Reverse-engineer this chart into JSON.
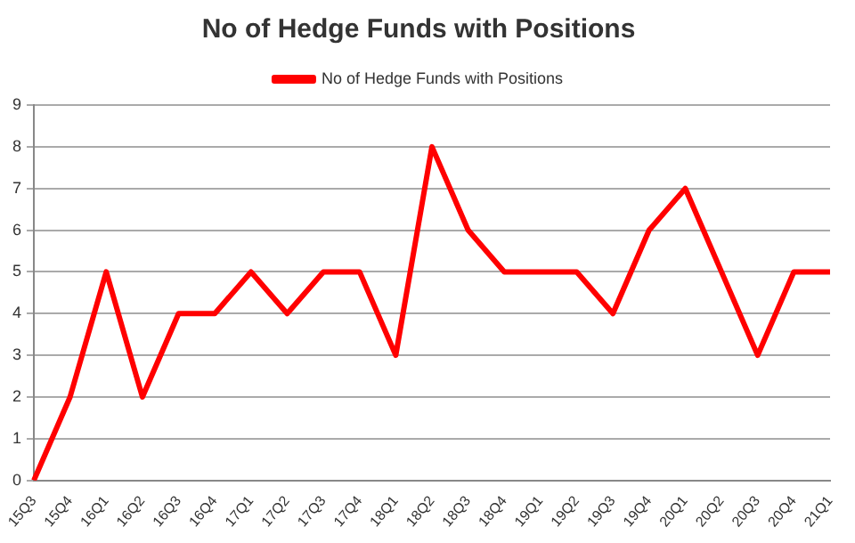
{
  "chart_data": {
    "type": "line",
    "title": "No of Hedge Funds with Positions",
    "categories": [
      "15Q3",
      "15Q4",
      "16Q1",
      "16Q2",
      "16Q3",
      "16Q4",
      "17Q1",
      "17Q2",
      "17Q3",
      "17Q4",
      "18Q1",
      "18Q2",
      "18Q3",
      "18Q4",
      "19Q1",
      "19Q2",
      "19Q3",
      "19Q4",
      "20Q1",
      "20Q2",
      "20Q3",
      "20Q4",
      "21Q1"
    ],
    "series": [
      {
        "name": "No of Hedge Funds with Positions",
        "color": "#ff0000",
        "values": [
          0,
          2,
          5,
          2,
          4,
          4,
          5,
          4,
          5,
          5,
          3,
          8,
          6,
          5,
          5,
          5,
          4,
          6,
          7,
          5,
          3,
          5,
          5
        ]
      }
    ],
    "ylim": [
      0,
      9
    ],
    "yticks": [
      0,
      1,
      2,
      3,
      4,
      5,
      6,
      7,
      8,
      9
    ],
    "grid": "y",
    "legend": "top",
    "marker": "none"
  }
}
